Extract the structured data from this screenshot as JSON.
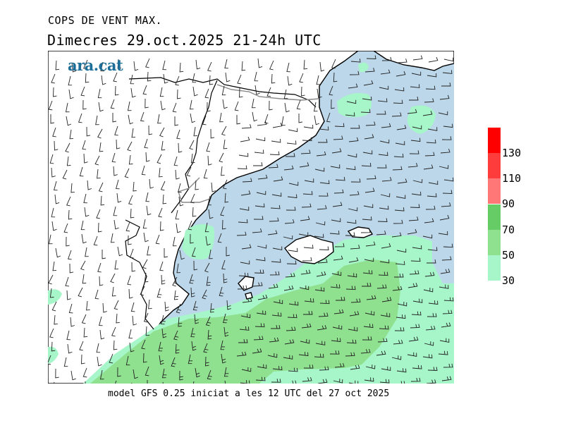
{
  "header": {
    "title": "COPS DE VENT MAX.",
    "subtitle": "Dimecres  29.oct.2025 21-24h UTC"
  },
  "logo": {
    "text": "ara.cat"
  },
  "footer": {
    "text": "model GFS 0.25 iniciat a les 12 UTC del 27 oct 2025"
  },
  "legend": {
    "colors": [
      "#a6f6c9",
      "#8fe08f",
      "#66cc66",
      "#ff7777",
      "#ff3c3c",
      "#ff0000"
    ],
    "labels": [
      "30",
      "50",
      "70",
      "90",
      "110",
      "130"
    ]
  },
  "map": {
    "land_color": "#ffffff",
    "sea_color": "#bcd7ea",
    "strong_wind_colors": [
      "#a6f6c9",
      "#8fe08f"
    ]
  }
}
